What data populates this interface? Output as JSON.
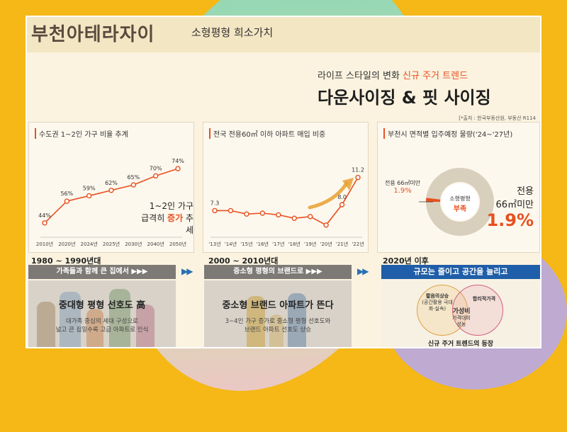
{
  "header": {
    "brand": "부천아테라자이",
    "subtitle": "소형평형 희소가치"
  },
  "headline": {
    "pre_text": "라이프 스타일의 변화 ",
    "pre_highlight": "신규 주거 트렌드",
    "title": "다운사이징 & 핏 사이징",
    "source": "[*출처 : 한국부동산원, 부동산 R114"
  },
  "panel1": {
    "title": "수도권 1~2인 가구 비율 추계",
    "note_line1": "1~2인 가구",
    "note_line2_pre": "급격히 ",
    "note_line2_hl": "증가",
    "note_line2_post": " 추세"
  },
  "panel2": {
    "title": "전국 전용60㎡ 이하 아파트 매입 비중"
  },
  "panel3": {
    "title": "부천시 면적별 입주예정 물량('24~'27년)",
    "legend_label": "전용 66㎡미만",
    "legend_value": "1.9%",
    "center_label": "소형평형",
    "center_value": "부족",
    "big_line1": "전용",
    "big_line2": "66㎡미만",
    "big_value": "1.9%"
  },
  "chart_data": [
    {
      "type": "line",
      "title": "수도권 1~2인 가구 비율 추계",
      "categories": [
        "2010년",
        "2020년",
        "2024년",
        "2025년",
        "2030년",
        "2040년",
        "2050년"
      ],
      "values": [
        44,
        56,
        59,
        62,
        65,
        70,
        74
      ],
      "labels": [
        "44%",
        "56%",
        "59%",
        "62%",
        "65%",
        "70%",
        "74%"
      ],
      "ylim": [
        40,
        76
      ]
    },
    {
      "type": "line",
      "title": "전국 전용60㎡ 이하 아파트 매입 비중",
      "categories": [
        "'13년",
        "'14년",
        "'15년",
        "'16년",
        "'17년",
        "'18년",
        "'19년",
        "'20년",
        "'21년",
        "'22년"
      ],
      "values": [
        7.3,
        7.3,
        6.9,
        7.0,
        6.8,
        6.4,
        6.6,
        5.6,
        8.0,
        11.2
      ],
      "labels": [
        "7.3",
        "",
        "",
        "",
        "",
        "",
        "",
        "",
        "8.0",
        "11.2"
      ],
      "ylim": [
        5,
        12
      ]
    },
    {
      "type": "pie",
      "title": "부천시 면적별 입주예정 물량('24~'27년)",
      "slices": [
        {
          "name": "전용 66㎡미만",
          "value": 1.9
        },
        {
          "name": "기타",
          "value": 98.1
        }
      ]
    }
  ],
  "eras": [
    {
      "label": "1980 ~ 1990년대",
      "bar": "가족들과 함께 큰 집에서 ▶▶▶",
      "title": "중대형 평형 선호도 高",
      "desc1": "대가족 중심의 세대 구성으로",
      "desc2": "넓고 큰 집일수록 고급 아파트로 인식"
    },
    {
      "label": "2000 ~ 2010년대",
      "bar": "중소형 평형의 브랜드로 ▶▶▶",
      "title": "중소형 브랜드 아파트가 뜬다",
      "desc1": "3~4인 가구 증가로 중소형 평형 선호도와",
      "desc2": "브랜드 아파트 선호도 상승"
    },
    {
      "label": "2020년 이후",
      "bar": "규모는 줄이고 공간을 늘리고",
      "venn_left": "짧음의상승",
      "venn_left_sub": "(공간활용 극대화·실속)",
      "venn_right": "합리적가격",
      "venn_center": "가성비",
      "venn_center_sub": "가격대비 성능",
      "bottom": "신규 주거 트렌드의 등장"
    }
  ],
  "arrow_glyph": "▶▶",
  "colors": {
    "accent": "#e8501f",
    "gray_bar": "#7d7a76",
    "blue_bar": "#1f5ea8"
  }
}
